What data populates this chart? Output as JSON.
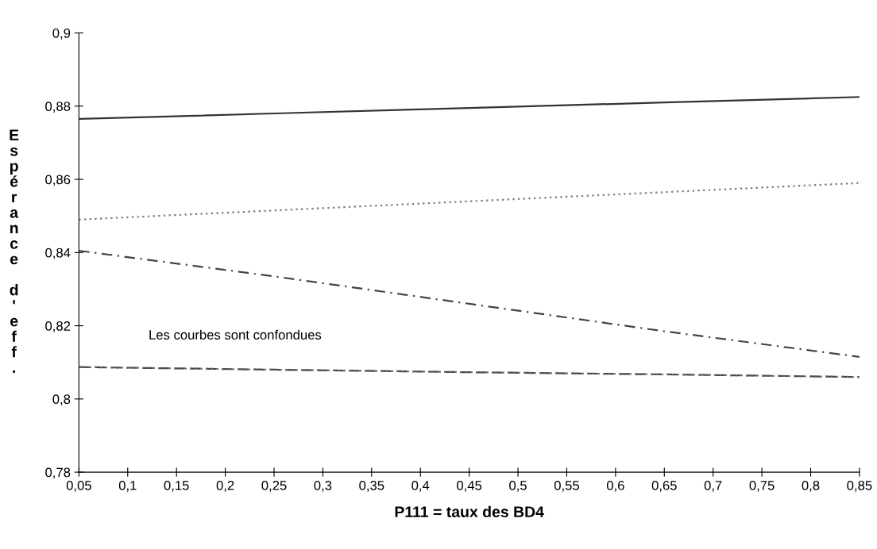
{
  "chart_data": {
    "type": "line",
    "xlabel": "P111 = taux des BD4",
    "ylabel": "Espérance d'eff.",
    "xlim": [
      0.05,
      0.85
    ],
    "xticks": [
      {
        "value": 0.05,
        "label": "0,05"
      },
      {
        "value": 0.1,
        "label": "0,1"
      },
      {
        "value": 0.15,
        "label": "0,15"
      },
      {
        "value": 0.2,
        "label": "0,2"
      },
      {
        "value": 0.25,
        "label": "0,25"
      },
      {
        "value": 0.3,
        "label": "0,3"
      },
      {
        "value": 0.35,
        "label": "0,35"
      },
      {
        "value": 0.4,
        "label": "0,4"
      },
      {
        "value": 0.45,
        "label": "0,45"
      },
      {
        "value": 0.5,
        "label": "0,5"
      },
      {
        "value": 0.55,
        "label": "0,55"
      },
      {
        "value": 0.6,
        "label": "0,6"
      },
      {
        "value": 0.65,
        "label": "0,65"
      },
      {
        "value": 0.7,
        "label": "0,7"
      },
      {
        "value": 0.75,
        "label": "0,75"
      },
      {
        "value": 0.8,
        "label": "0,8"
      },
      {
        "value": 0.85,
        "label": "0,85"
      }
    ],
    "ylim": [
      0.78,
      0.9
    ],
    "yticks": [
      {
        "value": 0.78,
        "label": "0,78"
      },
      {
        "value": 0.8,
        "label": "0,8"
      },
      {
        "value": 0.82,
        "label": "0,82"
      },
      {
        "value": 0.84,
        "label": "0,84"
      },
      {
        "value": 0.86,
        "label": "0,86"
      },
      {
        "value": 0.88,
        "label": "0,88"
      },
      {
        "value": 0.9,
        "label": "0,9"
      }
    ],
    "x": [
      0.05,
      0.25,
      0.45,
      0.65,
      0.85
    ],
    "series": [
      {
        "color": "#333333",
        "line_style": "solid",
        "values": [
          0.8765,
          0.878,
          0.8795,
          0.881,
          0.8825
        ]
      },
      {
        "color": "#777777",
        "line_style": "dotted",
        "values": [
          0.849,
          0.8515,
          0.854,
          0.8565,
          0.859
        ]
      },
      {
        "color": "#444444",
        "line_style": "dashdot",
        "values": [
          0.8405,
          0.8335,
          0.826,
          0.8185,
          0.8115
        ]
      },
      {
        "color": "#444444",
        "line_style": "dashed",
        "values": [
          0.8087,
          0.808,
          0.8073,
          0.8067,
          0.806
        ]
      },
      {
        "color": "#666666",
        "line_style": "dotted",
        "values": [
          0.8087,
          0.808,
          0.8073,
          0.8067,
          0.806
        ]
      }
    ],
    "annotations": [
      "Les courbes sont confondues"
    ],
    "grid": false,
    "legend": false,
    "marker": "none"
  }
}
